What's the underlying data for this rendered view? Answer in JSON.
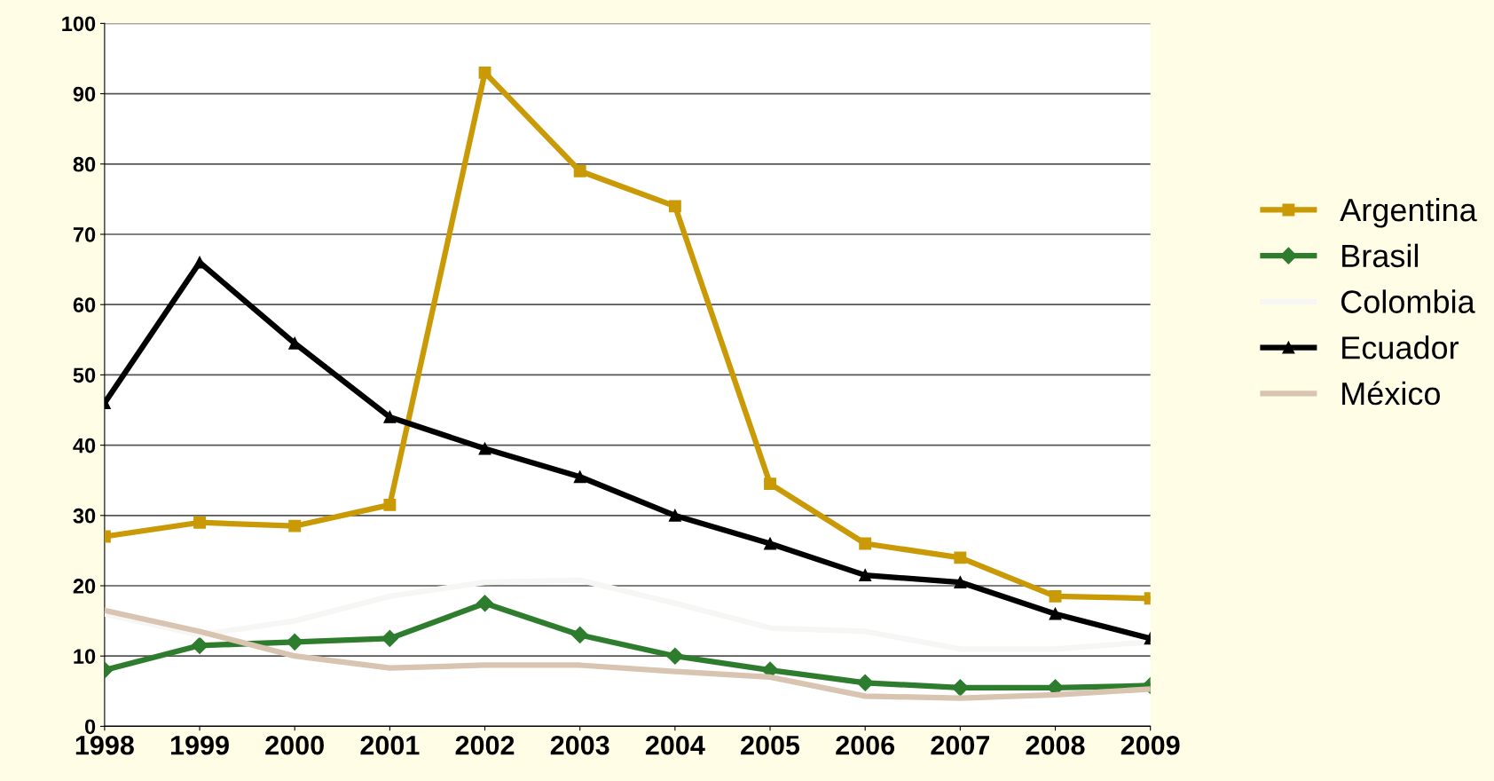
{
  "chart_data": {
    "type": "line",
    "categories": [
      "1998",
      "1999",
      "2000",
      "2001",
      "2002",
      "2003",
      "2004",
      "2005",
      "2006",
      "2007",
      "2008",
      "2009"
    ],
    "series": [
      {
        "name": "Argentina",
        "color": "#c99a06",
        "marker": "square",
        "values": [
          27,
          29,
          28.5,
          31.5,
          93,
          79,
          74,
          34.5,
          26,
          24,
          18.5,
          18.2
        ]
      },
      {
        "name": "Brasil",
        "color": "#2e7d2e",
        "marker": "diamond",
        "values": [
          8,
          11.5,
          12,
          12.5,
          17.5,
          13,
          10,
          8,
          6.2,
          5.5,
          5.5,
          5.8
        ]
      },
      {
        "name": "Colombia",
        "color": "#f6f6f4",
        "marker": "none",
        "values": [
          16,
          13,
          15,
          18.5,
          20.5,
          20.8,
          17.5,
          14,
          13.5,
          11,
          11,
          12
        ]
      },
      {
        "name": "Ecuador",
        "color": "#000000",
        "marker": "triangle",
        "values": [
          46,
          66,
          54.5,
          44,
          39.5,
          35.5,
          30,
          26,
          21.5,
          20.5,
          16,
          12.5
        ]
      },
      {
        "name": "México",
        "color": "#d8c4b0",
        "marker": "none",
        "values": [
          16.5,
          13.5,
          10,
          8.3,
          8.7,
          8.7,
          7.8,
          7,
          4.3,
          4,
          4.5,
          5.3
        ]
      }
    ],
    "ylim": [
      0,
      100
    ],
    "yticks": [
      0,
      10,
      20,
      30,
      40,
      50,
      60,
      70,
      80,
      90,
      100
    ],
    "grid": "y",
    "legend": "right"
  }
}
